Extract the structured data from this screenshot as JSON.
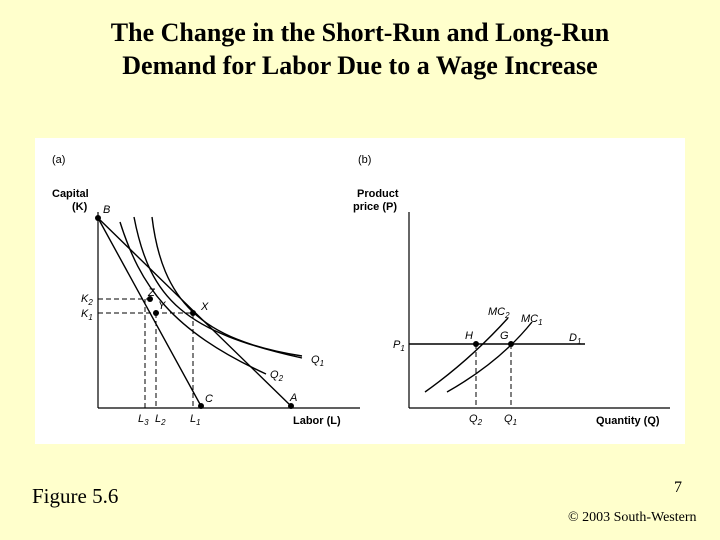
{
  "slide": {
    "title_line1": "The Change in the Short-Run and Long-Run",
    "title_line2": "Demand for Labor Due to a Wage Increase",
    "figure_label": "Figure 5.6",
    "page_number": "7",
    "copyright": "© 2003 South-Western"
  },
  "panel_a": {
    "tag": "(a)",
    "y_axis_line1": "Capital",
    "y_axis_line2": "(K)",
    "x_axis": "Labor (L)",
    "points": {
      "B": "B",
      "Z": "Z",
      "Y": "Y",
      "X": "X",
      "C": "C",
      "A": "A"
    },
    "curves": {
      "Q1": "Q",
      "Q1_sub": "1",
      "Q2": "Q",
      "Q2_sub": "2"
    },
    "y_ticks": {
      "K2": "K",
      "K2_sub": "2",
      "K1": "K",
      "K1_sub": "1"
    },
    "x_ticks": {
      "L3": "L",
      "L3_sub": "3",
      "L2": "L",
      "L2_sub": "2",
      "L1": "L",
      "L1_sub": "1"
    }
  },
  "panel_b": {
    "tag": "(b)",
    "y_axis_line1": "Product",
    "y_axis_line2": "price (P)",
    "x_axis": "Quantity (Q)",
    "points": {
      "H": "H",
      "G": "G"
    },
    "curves": {
      "MC2": "MC",
      "MC2_sub": "2",
      "MC1": "MC",
      "MC1_sub": "1",
      "D1": "D",
      "D1_sub": "1"
    },
    "y_ticks": {
      "P1": "P",
      "P1_sub": "1"
    },
    "x_ticks": {
      "Q2": "Q",
      "Q2_sub": "2",
      "Q1": "Q",
      "Q1_sub": "1"
    }
  }
}
